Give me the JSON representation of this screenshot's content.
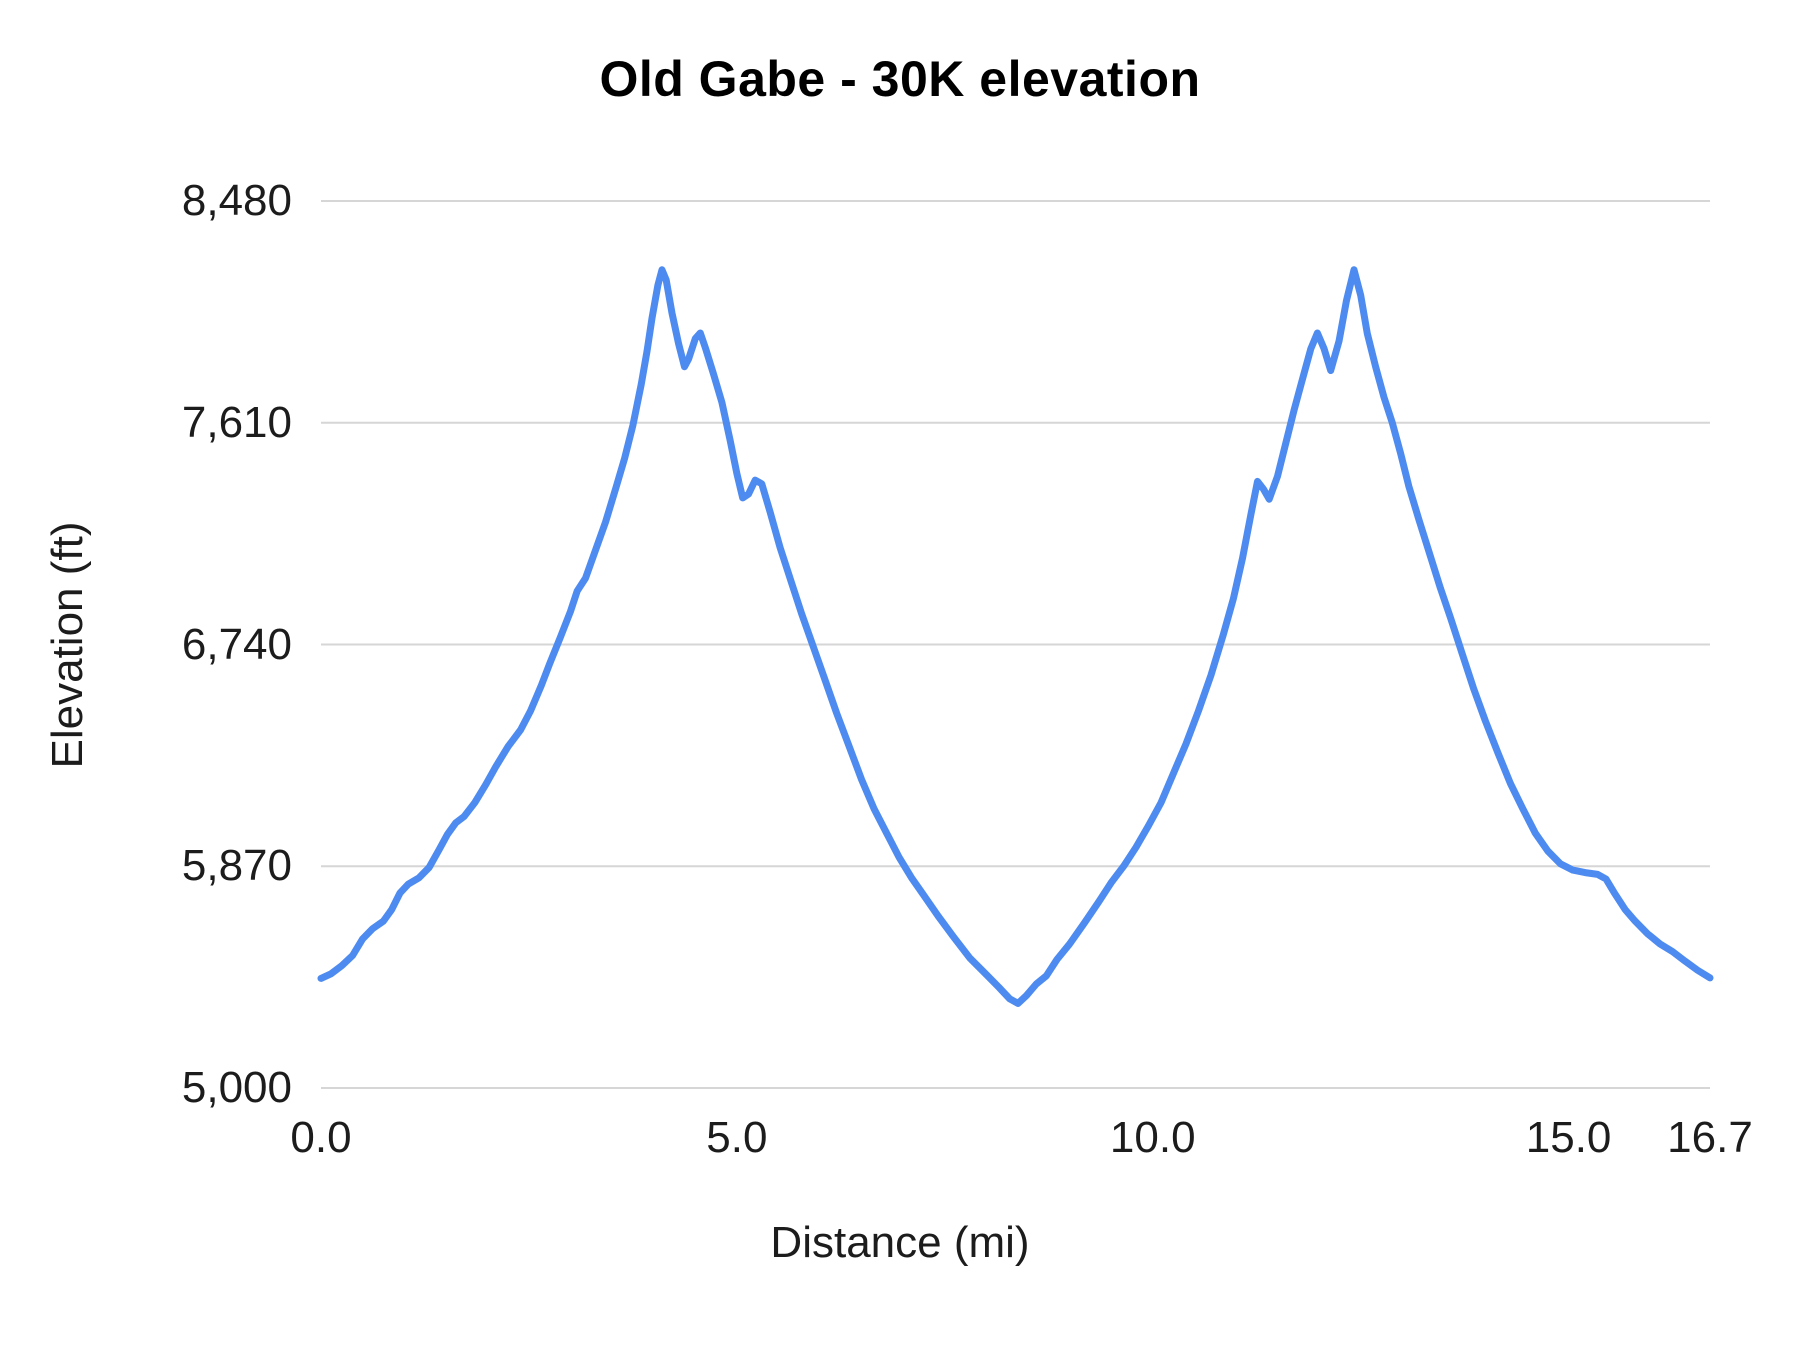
{
  "chart": {
    "title": "Old Gabe - 30K elevation",
    "xlabel": "Distance (mi)",
    "ylabel": "Elevation (ft)"
  },
  "chart_data": {
    "type": "line",
    "title": "Old Gabe - 30K elevation",
    "xlabel": "Distance (mi)",
    "ylabel": "Elevation (ft)",
    "xlim": [
      0,
      16.7
    ],
    "ylim": [
      5000,
      8480
    ],
    "grid": "horizontal",
    "legend": "none",
    "line_color": "#4e8bf0",
    "gridline_color": "#d6d6d6",
    "xticks": [
      {
        "value": 0.0,
        "label": "0.0"
      },
      {
        "value": 5.0,
        "label": "5.0"
      },
      {
        "value": 10.0,
        "label": "10.0"
      },
      {
        "value": 15.0,
        "label": "15.0"
      },
      {
        "value": 16.7,
        "label": "16.7"
      }
    ],
    "yticks": [
      {
        "value": 5000,
        "label": "5,000"
      },
      {
        "value": 5870,
        "label": "5,870"
      },
      {
        "value": 6740,
        "label": "6,740"
      },
      {
        "value": 7610,
        "label": "7,610"
      },
      {
        "value": 8480,
        "label": "8,480"
      }
    ],
    "series": [
      {
        "name": "elevation",
        "points": [
          [
            0.0,
            5430
          ],
          [
            0.12,
            5448
          ],
          [
            0.25,
            5480
          ],
          [
            0.38,
            5520
          ],
          [
            0.5,
            5585
          ],
          [
            0.62,
            5625
          ],
          [
            0.75,
            5655
          ],
          [
            0.85,
            5700
          ],
          [
            0.95,
            5765
          ],
          [
            1.05,
            5800
          ],
          [
            1.18,
            5825
          ],
          [
            1.3,
            5865
          ],
          [
            1.42,
            5935
          ],
          [
            1.52,
            5995
          ],
          [
            1.62,
            6040
          ],
          [
            1.72,
            6065
          ],
          [
            1.85,
            6120
          ],
          [
            1.98,
            6190
          ],
          [
            2.1,
            6260
          ],
          [
            2.25,
            6340
          ],
          [
            2.4,
            6405
          ],
          [
            2.52,
            6480
          ],
          [
            2.65,
            6580
          ],
          [
            2.75,
            6665
          ],
          [
            2.88,
            6770
          ],
          [
            3.0,
            6870
          ],
          [
            3.08,
            6950
          ],
          [
            3.18,
            7000
          ],
          [
            3.3,
            7110
          ],
          [
            3.42,
            7220
          ],
          [
            3.55,
            7360
          ],
          [
            3.65,
            7470
          ],
          [
            3.75,
            7600
          ],
          [
            3.85,
            7760
          ],
          [
            3.92,
            7890
          ],
          [
            3.98,
            8020
          ],
          [
            4.05,
            8150
          ],
          [
            4.1,
            8210
          ],
          [
            4.15,
            8170
          ],
          [
            4.22,
            8040
          ],
          [
            4.3,
            7920
          ],
          [
            4.37,
            7830
          ],
          [
            4.42,
            7860
          ],
          [
            4.5,
            7940
          ],
          [
            4.56,
            7962
          ],
          [
            4.62,
            7905
          ],
          [
            4.72,
            7800
          ],
          [
            4.82,
            7690
          ],
          [
            4.92,
            7540
          ],
          [
            5.0,
            7410
          ],
          [
            5.07,
            7315
          ],
          [
            5.14,
            7330
          ],
          [
            5.22,
            7385
          ],
          [
            5.3,
            7370
          ],
          [
            5.4,
            7260
          ],
          [
            5.52,
            7120
          ],
          [
            5.65,
            6990
          ],
          [
            5.78,
            6860
          ],
          [
            5.92,
            6730
          ],
          [
            6.05,
            6610
          ],
          [
            6.2,
            6470
          ],
          [
            6.35,
            6340
          ],
          [
            6.5,
            6210
          ],
          [
            6.65,
            6095
          ],
          [
            6.8,
            6000
          ],
          [
            6.95,
            5905
          ],
          [
            7.1,
            5825
          ],
          [
            7.25,
            5755
          ],
          [
            7.42,
            5675
          ],
          [
            7.6,
            5595
          ],
          [
            7.8,
            5510
          ],
          [
            8.0,
            5445
          ],
          [
            8.15,
            5395
          ],
          [
            8.28,
            5350
          ],
          [
            8.38,
            5332
          ],
          [
            8.48,
            5362
          ],
          [
            8.6,
            5408
          ],
          [
            8.72,
            5440
          ],
          [
            8.85,
            5505
          ],
          [
            9.0,
            5565
          ],
          [
            9.18,
            5648
          ],
          [
            9.35,
            5730
          ],
          [
            9.5,
            5805
          ],
          [
            9.65,
            5870
          ],
          [
            9.8,
            5945
          ],
          [
            9.95,
            6030
          ],
          [
            10.1,
            6120
          ],
          [
            10.25,
            6235
          ],
          [
            10.4,
            6350
          ],
          [
            10.55,
            6480
          ],
          [
            10.7,
            6620
          ],
          [
            10.85,
            6780
          ],
          [
            10.97,
            6920
          ],
          [
            11.08,
            7080
          ],
          [
            11.18,
            7250
          ],
          [
            11.26,
            7380
          ],
          [
            11.33,
            7350
          ],
          [
            11.4,
            7310
          ],
          [
            11.5,
            7400
          ],
          [
            11.6,
            7530
          ],
          [
            11.7,
            7660
          ],
          [
            11.8,
            7780
          ],
          [
            11.9,
            7900
          ],
          [
            11.98,
            7962
          ],
          [
            12.06,
            7900
          ],
          [
            12.14,
            7815
          ],
          [
            12.24,
            7930
          ],
          [
            12.33,
            8090
          ],
          [
            12.42,
            8210
          ],
          [
            12.5,
            8110
          ],
          [
            12.58,
            7960
          ],
          [
            12.68,
            7830
          ],
          [
            12.78,
            7710
          ],
          [
            12.88,
            7610
          ],
          [
            12.98,
            7490
          ],
          [
            13.08,
            7360
          ],
          [
            13.2,
            7230
          ],
          [
            13.33,
            7095
          ],
          [
            13.46,
            6960
          ],
          [
            13.58,
            6845
          ],
          [
            13.72,
            6705
          ],
          [
            13.86,
            6565
          ],
          [
            14.0,
            6440
          ],
          [
            14.15,
            6315
          ],
          [
            14.3,
            6195
          ],
          [
            14.45,
            6095
          ],
          [
            14.6,
            6000
          ],
          [
            14.75,
            5930
          ],
          [
            14.9,
            5880
          ],
          [
            15.05,
            5855
          ],
          [
            15.2,
            5845
          ],
          [
            15.35,
            5838
          ],
          [
            15.45,
            5820
          ],
          [
            15.55,
            5765
          ],
          [
            15.68,
            5700
          ],
          [
            15.8,
            5655
          ],
          [
            15.95,
            5605
          ],
          [
            16.1,
            5565
          ],
          [
            16.25,
            5535
          ],
          [
            16.4,
            5498
          ],
          [
            16.55,
            5462
          ],
          [
            16.7,
            5432
          ]
        ]
      }
    ]
  }
}
